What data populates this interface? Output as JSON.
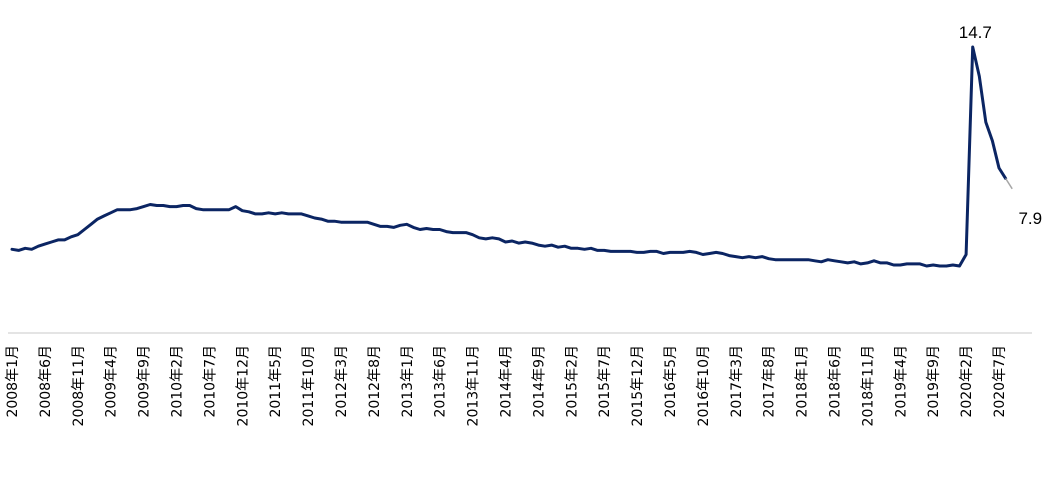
{
  "chart_data": {
    "type": "line",
    "x_axis_labels": [
      "2008年1月",
      "2008年6月",
      "2008年11月",
      "2009年4月",
      "2009年9月",
      "2010年2月",
      "2010年7月",
      "2010年12月",
      "2011年5月",
      "2011年10月",
      "2012年3月",
      "2012年8月",
      "2013年1月",
      "2013年6月",
      "2013年11月",
      "2014年4月",
      "2014年9月",
      "2015年2月",
      "2015年7月",
      "2015年12月",
      "2016年5月",
      "2016年10月",
      "2017年3月",
      "2017年8月",
      "2018年1月",
      "2018年6月",
      "2018年11月",
      "2019年4月",
      "2019年9月",
      "2020年2月",
      "2020年7月"
    ],
    "start": "2008年1月",
    "end": "2020年11月",
    "ylim": [
      2,
      16
    ],
    "grid": false,
    "legend": "none",
    "series": [
      {
        "values": [
          5.0,
          4.95,
          5.05,
          5.0,
          5.15,
          5.25,
          5.35,
          5.45,
          5.45,
          5.6,
          5.7,
          5.95,
          6.2,
          6.45,
          6.6,
          6.75,
          6.9,
          6.9,
          6.9,
          6.95,
          7.05,
          7.15,
          7.1,
          7.1,
          7.05,
          7.05,
          7.1,
          7.1,
          6.95,
          6.9,
          6.9,
          6.9,
          6.9,
          6.9,
          7.05,
          6.85,
          6.8,
          6.7,
          6.7,
          6.75,
          6.7,
          6.75,
          6.7,
          6.7,
          6.7,
          6.6,
          6.5,
          6.45,
          6.35,
          6.35,
          6.3,
          6.3,
          6.3,
          6.3,
          6.3,
          6.2,
          6.1,
          6.1,
          6.05,
          6.15,
          6.2,
          6.05,
          5.95,
          6.0,
          5.95,
          5.95,
          5.85,
          5.8,
          5.8,
          5.8,
          5.7,
          5.55,
          5.5,
          5.55,
          5.5,
          5.35,
          5.4,
          5.3,
          5.35,
          5.3,
          5.2,
          5.15,
          5.2,
          5.1,
          5.15,
          5.05,
          5.05,
          5.0,
          5.05,
          4.95,
          4.95,
          4.9,
          4.9,
          4.9,
          4.9,
          4.85,
          4.85,
          4.9,
          4.9,
          4.8,
          4.85,
          4.85,
          4.85,
          4.9,
          4.85,
          4.75,
          4.8,
          4.85,
          4.8,
          4.7,
          4.65,
          4.6,
          4.65,
          4.6,
          4.65,
          4.55,
          4.5,
          4.5,
          4.5,
          4.5,
          4.5,
          4.5,
          4.45,
          4.4,
          4.5,
          4.45,
          4.4,
          4.35,
          4.4,
          4.3,
          4.35,
          4.45,
          4.35,
          4.35,
          4.25,
          4.25,
          4.3,
          4.3,
          4.3,
          4.2,
          4.25,
          4.2,
          4.2,
          4.25,
          4.2,
          4.75,
          14.7,
          13.3,
          11.1,
          10.2,
          8.9,
          8.4,
          7.9
        ],
        "color": "#0b2563"
      }
    ],
    "annotations": [
      {
        "text": "14.7",
        "x": "2020年4月",
        "y": 14.7
      },
      {
        "text": "7.9",
        "x": "2020年11月",
        "y": 7.9
      }
    ]
  }
}
